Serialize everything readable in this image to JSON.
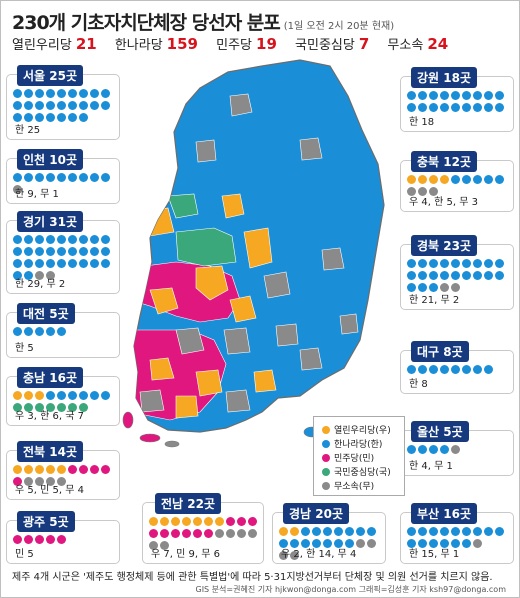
{
  "title": "230개 기초자치단체장 당선자 분포",
  "timestamp": "(1일 오전 2시 20분 현재)",
  "parties": [
    {
      "name": "열린우리당",
      "seats": "21",
      "color": "#f7a823"
    },
    {
      "name": "한나라당",
      "seats": "159",
      "color": "#1a8fd8"
    },
    {
      "name": "민주당",
      "seats": "19",
      "color": "#e0177e"
    },
    {
      "name": "국민중심당",
      "seats": "7",
      "color": "#3aa87a"
    },
    {
      "name": "무소속",
      "seats": "24",
      "color": "#8a8a8a"
    }
  ],
  "legend": [
    {
      "label": "열린우리당(우)",
      "color": "#f7a823"
    },
    {
      "label": "한나라당(한)",
      "color": "#1a8fd8"
    },
    {
      "label": "민주당(민)",
      "color": "#e0177e"
    },
    {
      "label": "국민중심당(국)",
      "color": "#3aa87a"
    },
    {
      "label": "무소속(무)",
      "color": "#8a8a8a"
    }
  ],
  "regions": [
    {
      "name": "서울 25곳",
      "summary": "한 25",
      "counts": {
        "u": 0,
        "h": 25,
        "m": 0,
        "g": 0,
        "i": 0
      }
    },
    {
      "name": "인천 10곳",
      "summary": "한 9, 무 1",
      "counts": {
        "u": 0,
        "h": 9,
        "m": 0,
        "g": 0,
        "i": 1
      }
    },
    {
      "name": "경기 31곳",
      "summary": "한 29, 무 2",
      "counts": {
        "u": 0,
        "h": 29,
        "m": 0,
        "g": 0,
        "i": 2
      }
    },
    {
      "name": "대전 5곳",
      "summary": "한 5",
      "counts": {
        "u": 0,
        "h": 5,
        "m": 0,
        "g": 0,
        "i": 0
      }
    },
    {
      "name": "충남 16곳",
      "summary": "우 3, 한 6, 국 7",
      "counts": {
        "u": 3,
        "h": 6,
        "m": 0,
        "g": 7,
        "i": 0
      }
    },
    {
      "name": "전북 14곳",
      "summary": "우 5, 민 5, 무 4",
      "counts": {
        "u": 5,
        "h": 0,
        "m": 5,
        "g": 0,
        "i": 4
      }
    },
    {
      "name": "광주 5곳",
      "summary": "민 5",
      "counts": {
        "u": 0,
        "h": 0,
        "m": 5,
        "g": 0,
        "i": 0
      }
    },
    {
      "name": "전남 22곳",
      "summary": "우 7, 민 9, 무 6",
      "counts": {
        "u": 7,
        "h": 0,
        "m": 9,
        "g": 0,
        "i": 6
      }
    },
    {
      "name": "경남 20곳",
      "summary": "우 2, 한 14, 무 4",
      "counts": {
        "u": 2,
        "h": 14,
        "m": 0,
        "g": 0,
        "i": 4
      }
    },
    {
      "name": "부산 16곳",
      "summary": "한 15, 무 1",
      "counts": {
        "u": 0,
        "h": 15,
        "m": 0,
        "g": 0,
        "i": 1
      }
    },
    {
      "name": "울산 5곳",
      "summary": "한 4, 무 1",
      "counts": {
        "u": 0,
        "h": 4,
        "m": 0,
        "g": 0,
        "i": 1
      }
    },
    {
      "name": "대구 8곳",
      "summary": "한 8",
      "counts": {
        "u": 0,
        "h": 8,
        "m": 0,
        "g": 0,
        "i": 0
      }
    },
    {
      "name": "경북 23곳",
      "summary": "한 21, 무 2",
      "counts": {
        "u": 0,
        "h": 21,
        "m": 0,
        "g": 0,
        "i": 2
      }
    },
    {
      "name": "충북 12곳",
      "summary": "우 4, 한 5, 무 3",
      "counts": {
        "u": 4,
        "h": 5,
        "m": 0,
        "g": 0,
        "i": 3
      }
    },
    {
      "name": "강원 18곳",
      "summary": "한 18",
      "counts": {
        "u": 0,
        "h": 18,
        "m": 0,
        "g": 0,
        "i": 0
      }
    }
  ],
  "footnote": "제주 4개 시군은 '제주도 행정체제 등에 관한 특별법'에 따라 5·31지방선거부터 단체장 및 의원 선거를 치르지 않음.",
  "credit": "GIS 분석=권혜진 기자 hjkwon@donga.com 그래픽=김성훈 기자 ksh97@donga.com"
}
